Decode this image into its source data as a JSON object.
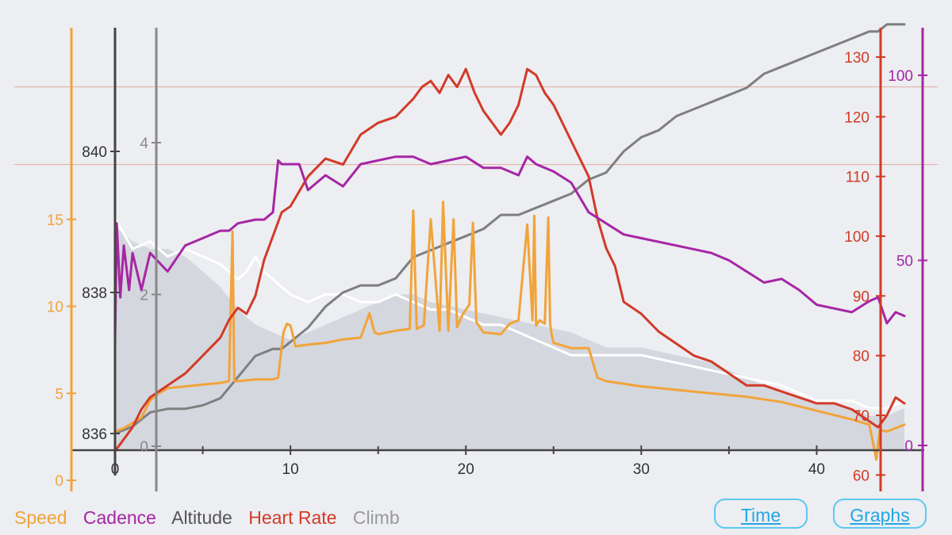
{
  "legend": {
    "speed": "Speed",
    "cadence": "Cadence",
    "altitude": "Altitude",
    "heart_rate": "Heart Rate",
    "climb": "Climb"
  },
  "buttons": {
    "time": "Time",
    "graphs": "Graphs"
  },
  "colors": {
    "speed": "#f2a33a",
    "cadence": "#a626a4",
    "altitude": "#7f7f7f",
    "heart_rate": "#d23a28",
    "climb": "#ffffff",
    "terrain": "#d2d4da",
    "background": "#eceef1",
    "button": "#24a6e6"
  },
  "chart_data": {
    "type": "line",
    "x_axis": {
      "ticks": [
        0,
        10,
        20,
        30,
        40
      ],
      "range": [
        0,
        45
      ]
    },
    "axes": {
      "speed": {
        "range": [
          0,
          20
        ],
        "ticks": [
          0,
          5,
          10,
          15
        ]
      },
      "altitude": {
        "range": [
          835.8,
          840.3
        ],
        "ticks": [
          836,
          838,
          840
        ]
      },
      "climb": {
        "range": [
          0,
          5
        ],
        "ticks": [
          0,
          2,
          4
        ]
      },
      "heart_rate": {
        "range": [
          60,
          131
        ],
        "ticks": [
          60,
          70,
          80,
          90,
          100,
          110,
          120,
          130
        ]
      },
      "cadence": {
        "range": [
          0,
          104
        ],
        "ticks": [
          0,
          50,
          100
        ]
      }
    },
    "reference_lines_heart_rate": [
      112,
      125
    ],
    "series": [
      {
        "name": "Speed",
        "axis": "speed",
        "color": "#f2a33a",
        "x": [
          0,
          0.5,
          1,
          1.5,
          2,
          2.5,
          3,
          4,
          5,
          6,
          6.5,
          6.7,
          6.8,
          7,
          8,
          9,
          9.3,
          9.6,
          9.8,
          10,
          10.3,
          11,
          12,
          13,
          14,
          14.5,
          14.8,
          15,
          16,
          16.8,
          17,
          17.2,
          17.4,
          17.6,
          18,
          18.5,
          18.7,
          19,
          19.3,
          19.5,
          19.8,
          20.2,
          20.4,
          20.6,
          21,
          22,
          22.5,
          23,
          23.5,
          23.8,
          23.9,
          24,
          24.2,
          24.5,
          24.7,
          24.8,
          24.9,
          25,
          26,
          27,
          27.5,
          28,
          30,
          32,
          34,
          36,
          38,
          40,
          42,
          43,
          43.4,
          43.6,
          44,
          44.5,
          45
        ],
        "y": [
          2.8,
          3,
          3.3,
          3.6,
          4.6,
          5,
          5.3,
          5.4,
          5.5,
          5.6,
          5.7,
          14.3,
          5.7,
          5.7,
          5.8,
          5.8,
          5.9,
          8.5,
          9,
          8.9,
          7.7,
          7.8,
          7.9,
          8.1,
          8.2,
          9.6,
          8.5,
          8.4,
          8.6,
          8.7,
          15.5,
          8.7,
          8.8,
          8.9,
          15,
          8.6,
          16,
          8.6,
          15,
          8.8,
          9.5,
          10.1,
          14.8,
          9.1,
          8.5,
          8.4,
          9,
          9.2,
          14.7,
          9.2,
          15.2,
          8.9,
          9.2,
          9,
          15.1,
          9,
          8.3,
          7.9,
          7.6,
          7.6,
          5.9,
          5.7,
          5.4,
          5.2,
          5,
          4.8,
          4.5,
          4,
          3.5,
          3.2,
          1.2,
          2.9,
          2.8,
          3,
          3.2
        ]
      },
      {
        "name": "Cadence",
        "axis": "cadence",
        "color": "#a626a4",
        "x": [
          0,
          0.1,
          0.3,
          0.5,
          0.8,
          1,
          1.5,
          2,
          3,
          4,
          5,
          6,
          6.5,
          7,
          8,
          8.5,
          9,
          9.3,
          9.5,
          10,
          10.5,
          11,
          12,
          13,
          14,
          15,
          16,
          17,
          18,
          19,
          20,
          21,
          22,
          23,
          23.5,
          24,
          25,
          26,
          27,
          28,
          29,
          30,
          32,
          34,
          35,
          36,
          37,
          38,
          39,
          40,
          41,
          42,
          43,
          43.5,
          44,
          44.5,
          45
        ],
        "y": [
          28,
          60,
          40,
          54,
          42,
          52,
          42,
          52,
          47,
          54,
          56,
          58,
          58,
          60,
          61,
          61,
          63,
          77,
          76,
          76,
          76,
          69,
          73,
          70,
          76,
          77,
          78,
          78,
          76,
          77,
          78,
          75,
          75,
          73,
          78,
          76,
          74,
          71,
          63,
          60,
          57,
          56,
          54,
          52,
          50,
          47,
          44,
          45,
          42,
          38,
          37,
          36,
          39,
          40,
          33,
          36,
          35
        ]
      },
      {
        "name": "Altitude",
        "axis": "altitude",
        "color": "#7f7f7f",
        "x": [
          0,
          0.5,
          1,
          1.5,
          2,
          3,
          4,
          5,
          6,
          7,
          8,
          9,
          9.5,
          10,
          11,
          12,
          13,
          14,
          15,
          16,
          17,
          18,
          19,
          20,
          21,
          22,
          23,
          24,
          25,
          26,
          27,
          28,
          29,
          30,
          31,
          32,
          33,
          34,
          35,
          36,
          37,
          38,
          39,
          40,
          41,
          42,
          43,
          43.5,
          44,
          45
        ],
        "y": [
          836,
          836.05,
          836.1,
          836.2,
          836.3,
          836.35,
          836.35,
          836.4,
          836.5,
          836.8,
          837.1,
          837.2,
          837.2,
          837.3,
          837.5,
          837.8,
          838,
          838.1,
          838.1,
          838.2,
          838.5,
          838.6,
          838.7,
          838.8,
          838.9,
          839.1,
          839.1,
          839.2,
          839.3,
          839.4,
          839.6,
          839.7,
          840,
          840.2,
          840.3,
          840.5,
          840.6,
          840.7,
          840.8,
          840.9,
          841.1,
          841.2,
          841.3,
          841.4,
          841.5,
          841.6,
          841.7,
          841.7,
          841.8,
          841.8
        ]
      },
      {
        "name": "Heart Rate",
        "axis": "heart_rate",
        "color": "#d23a28",
        "x": [
          0,
          0.5,
          1,
          1.5,
          2,
          3,
          4,
          5,
          6,
          6.5,
          7,
          7.5,
          8,
          8.5,
          9,
          9.5,
          10,
          11,
          12,
          13,
          14,
          15,
          16,
          17,
          17.5,
          18,
          18.5,
          19,
          19.5,
          20,
          20.5,
          21,
          21.5,
          22,
          22.5,
          23,
          23.5,
          24,
          24.5,
          25,
          26,
          27,
          27.5,
          28,
          28.5,
          29,
          30,
          31,
          32,
          33,
          34,
          35,
          36,
          37,
          38,
          39,
          40,
          41,
          42,
          43,
          43.5,
          44,
          44.5,
          45
        ],
        "y": [
          64,
          66,
          68,
          71,
          73,
          75,
          77,
          80,
          83,
          86,
          88,
          87,
          90,
          96,
          100,
          104,
          105,
          110,
          113,
          112,
          117,
          119,
          120,
          123,
          125,
          126,
          124,
          127,
          125,
          128,
          124,
          121,
          119,
          117,
          119,
          122,
          128,
          127,
          124,
          122,
          116,
          110,
          103,
          98,
          95,
          89,
          87,
          84,
          82,
          80,
          79,
          77,
          75,
          75,
          74,
          73,
          72,
          72,
          71,
          69,
          68,
          70,
          73,
          72
        ]
      },
      {
        "name": "Climb",
        "axis": "climb",
        "color": "#ffffff",
        "x": [
          0,
          1,
          2,
          3,
          4,
          5,
          6,
          6.5,
          7,
          7.5,
          8,
          8.5,
          9,
          10,
          11,
          12,
          13,
          14,
          15,
          16,
          17,
          18,
          19,
          20,
          21,
          22,
          23,
          24,
          25,
          26,
          27,
          28,
          29,
          30,
          32,
          34,
          36,
          38,
          40,
          42,
          43,
          44,
          45
        ],
        "y": [
          3,
          2.6,
          2.7,
          2.5,
          2.6,
          2.5,
          2.4,
          2.3,
          2.2,
          2.3,
          2.5,
          2.3,
          2.2,
          2,
          1.9,
          2,
          2,
          1.9,
          1.9,
          2,
          1.9,
          1.8,
          1.8,
          1.7,
          1.6,
          1.6,
          1.5,
          1.4,
          1.3,
          1.2,
          1.2,
          1.2,
          1.2,
          1.2,
          1.1,
          1.0,
          0.9,
          0.8,
          0.6,
          0.6,
          0.5,
          0.5,
          0.6
        ]
      }
    ],
    "terrain_profile": {
      "axis": "climb",
      "x": [
        0,
        1,
        2,
        3,
        4,
        5,
        6,
        7,
        8,
        9,
        10,
        12,
        14,
        16,
        17,
        18,
        20,
        22,
        24,
        26,
        28,
        30,
        32,
        34,
        36,
        38,
        40,
        42,
        43,
        44,
        45
      ],
      "y": [
        2.9,
        2.7,
        2.6,
        2.6,
        2.5,
        2.3,
        2.1,
        1.8,
        1.6,
        1.5,
        1.4,
        1.6,
        1.8,
        2,
        2,
        1.9,
        1.8,
        1.7,
        1.6,
        1.5,
        1.3,
        1.3,
        1.2,
        1.1,
        0.9,
        0.7,
        0.6,
        0.5,
        0.4,
        0.4,
        0.5
      ]
    }
  }
}
